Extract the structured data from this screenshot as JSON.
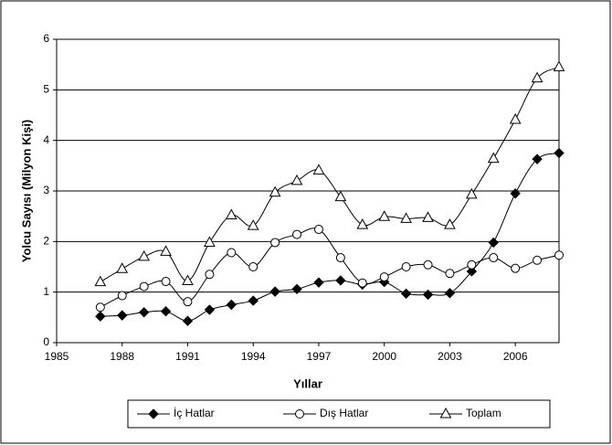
{
  "chart_data": {
    "type": "line",
    "x": [
      1987,
      1988,
      1989,
      1990,
      1991,
      1992,
      1993,
      1994,
      1995,
      1996,
      1997,
      1998,
      1999,
      2000,
      2001,
      2002,
      2003,
      2004,
      2005,
      2006,
      2007,
      2008
    ],
    "x_label": "Yıllar",
    "y_label": "Yolcu Sayısı (Milyon Kişi)",
    "xlim": [
      1985,
      2008
    ],
    "xticks": [
      1985,
      1988,
      1991,
      1994,
      1997,
      2000,
      2003,
      2006
    ],
    "ylim": [
      0,
      6
    ],
    "yticks": [
      0,
      1,
      2,
      3,
      4,
      5,
      6
    ],
    "grid": true,
    "smooth": true,
    "legend": "bottom",
    "series": [
      {
        "name": "İç Hatlar",
        "color": "#000000",
        "marker": "diamond",
        "values": [
          0.52,
          0.54,
          0.6,
          0.62,
          0.43,
          0.65,
          0.75,
          0.83,
          1.01,
          1.06,
          1.19,
          1.23,
          1.15,
          1.2,
          0.97,
          0.95,
          0.98,
          1.41,
          1.98,
          2.95,
          3.63,
          3.75
        ]
      },
      {
        "name": "Dış Hatlar",
        "color": "#000000",
        "marker": "circle",
        "values": [
          0.7,
          0.93,
          1.11,
          1.21,
          0.81,
          1.35,
          1.78,
          1.5,
          1.98,
          2.14,
          2.24,
          1.68,
          1.18,
          1.3,
          1.5,
          1.54,
          1.37,
          1.54,
          1.68,
          1.47,
          1.63,
          1.73
        ]
      },
      {
        "name": "Toplam",
        "color": "#000000",
        "marker": "triangle",
        "values": [
          1.2,
          1.46,
          1.7,
          1.8,
          1.22,
          1.98,
          2.52,
          2.31,
          2.97,
          3.2,
          3.41,
          2.88,
          2.33,
          2.49,
          2.45,
          2.47,
          2.33,
          2.93,
          3.64,
          4.41,
          5.23,
          5.45
        ]
      }
    ]
  }
}
